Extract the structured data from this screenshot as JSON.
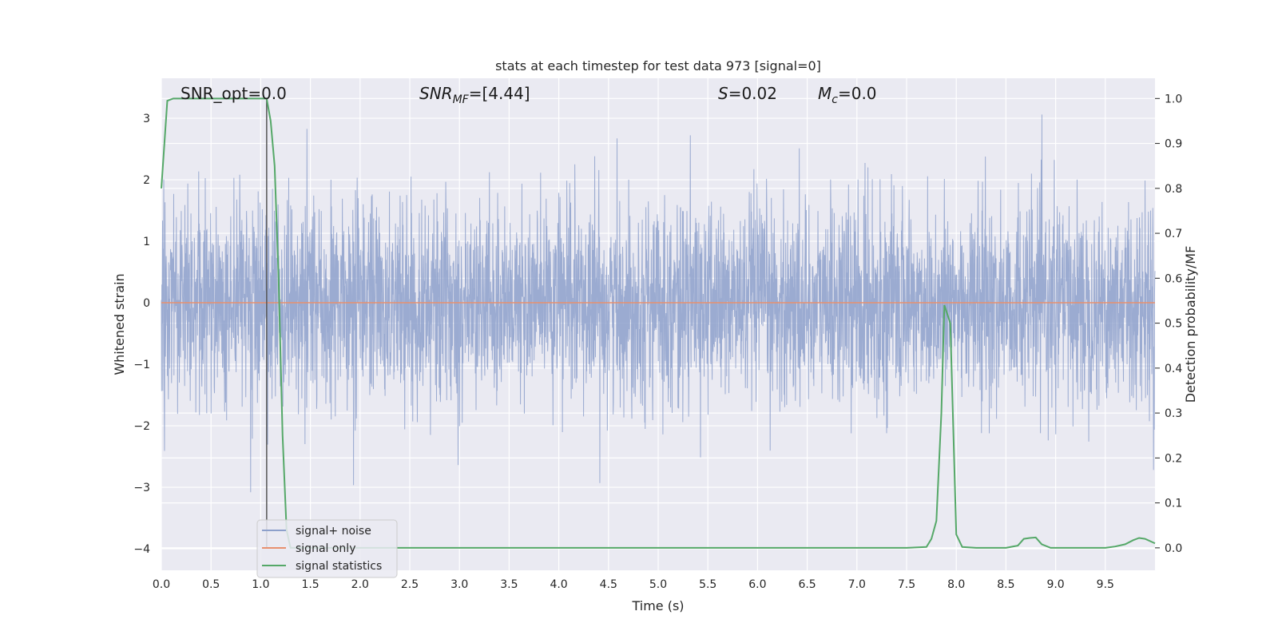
{
  "chart_data": {
    "type": "line",
    "title": "stats at each timestep for test data 973 [signal=0]",
    "xlabel": "Time (s)",
    "ylabel": "Whitened strain",
    "ylabel_right": "Detection probability/MF",
    "xlim": [
      0.0,
      10.0
    ],
    "ylim": [
      -4.35,
      3.65
    ],
    "ylim_right": [
      -0.05,
      1.045
    ],
    "x_ticks": [
      0.0,
      0.5,
      1.0,
      1.5,
      2.0,
      2.5,
      3.0,
      3.5,
      4.0,
      4.5,
      5.0,
      5.5,
      6.0,
      6.5,
      7.0,
      7.5,
      8.0,
      8.5,
      9.0,
      9.5
    ],
    "x_tick_labels": [
      "0.0",
      "0.5",
      "1.0",
      "1.5",
      "2.0",
      "2.5",
      "3.0",
      "3.5",
      "4.0",
      "4.5",
      "5.0",
      "5.5",
      "6.0",
      "6.5",
      "7.0",
      "7.5",
      "8.0",
      "8.5",
      "9.0",
      "9.5"
    ],
    "y_ticks": [
      3,
      2,
      1,
      0,
      -1,
      -2,
      -3,
      -4
    ],
    "y_tick_labels": [
      "3",
      "2",
      "1",
      "0",
      "−1",
      "−2",
      "−3",
      "−4"
    ],
    "y2_ticks": [
      1.0,
      0.9,
      0.8,
      0.7,
      0.6,
      0.5,
      0.4,
      0.3,
      0.2,
      0.1,
      0.0
    ],
    "y2_tick_labels": [
      "1.0",
      "0.9",
      "0.8",
      "0.7",
      "0.6",
      "0.5",
      "0.4",
      "0.3",
      "0.2",
      "0.1",
      "0.0"
    ],
    "grid": true,
    "legend_position": "lower-left",
    "annotations": {
      "snr_opt": "SNR_opt=0.0",
      "snr_mf_base": "SNR",
      "snr_mf_sub": "MF",
      "snr_mf_val": "=[4.44]",
      "s_base": "S",
      "s_val": "=0.02",
      "mc_base": "M",
      "mc_sub": "c",
      "mc_val": "=0.0"
    },
    "series": [
      {
        "name": "signal+ noise",
        "color": "#8da0cb",
        "axis": "left",
        "kind": "noise",
        "n_samples": 4096,
        "std": 0.8,
        "range": [
          -4.05,
          3.3
        ]
      },
      {
        "name": "signal only",
        "color": "#e8906e",
        "axis": "left",
        "x": [
          0.0,
          10.0
        ],
        "y": [
          0.0,
          0.0
        ]
      },
      {
        "name": "signal statistics",
        "color": "#55a868",
        "axis": "right",
        "x": [
          0.0,
          0.06,
          0.12,
          0.5,
          1.0,
          1.06,
          1.1,
          1.14,
          1.18,
          1.22,
          1.26,
          1.3,
          1.5,
          2.0,
          3.0,
          4.0,
          5.0,
          6.0,
          7.0,
          7.5,
          7.7,
          7.75,
          7.8,
          7.85,
          7.88,
          7.94,
          8.0,
          8.06,
          8.2,
          8.5,
          8.62,
          8.68,
          8.74,
          8.8,
          8.86,
          8.95,
          9.1,
          9.5,
          9.6,
          9.7,
          9.78,
          9.84,
          9.9,
          10.0
        ],
        "y": [
          0.8,
          0.995,
          1.0,
          1.0,
          1.0,
          1.0,
          0.95,
          0.85,
          0.6,
          0.25,
          0.04,
          0.0,
          0.0,
          0.0,
          0.0,
          0.0,
          0.0,
          0.0,
          0.0,
          0.0,
          0.002,
          0.02,
          0.06,
          0.3,
          0.54,
          0.5,
          0.03,
          0.002,
          0.0,
          0.0,
          0.005,
          0.02,
          0.022,
          0.023,
          0.008,
          0.0,
          0.0,
          0.0,
          0.003,
          0.008,
          0.017,
          0.022,
          0.02,
          0.01
        ]
      }
    ],
    "vertical_line": {
      "x": 1.06,
      "color": "#555555",
      "y_from": -4.0,
      "y_to": 3.3
    }
  }
}
